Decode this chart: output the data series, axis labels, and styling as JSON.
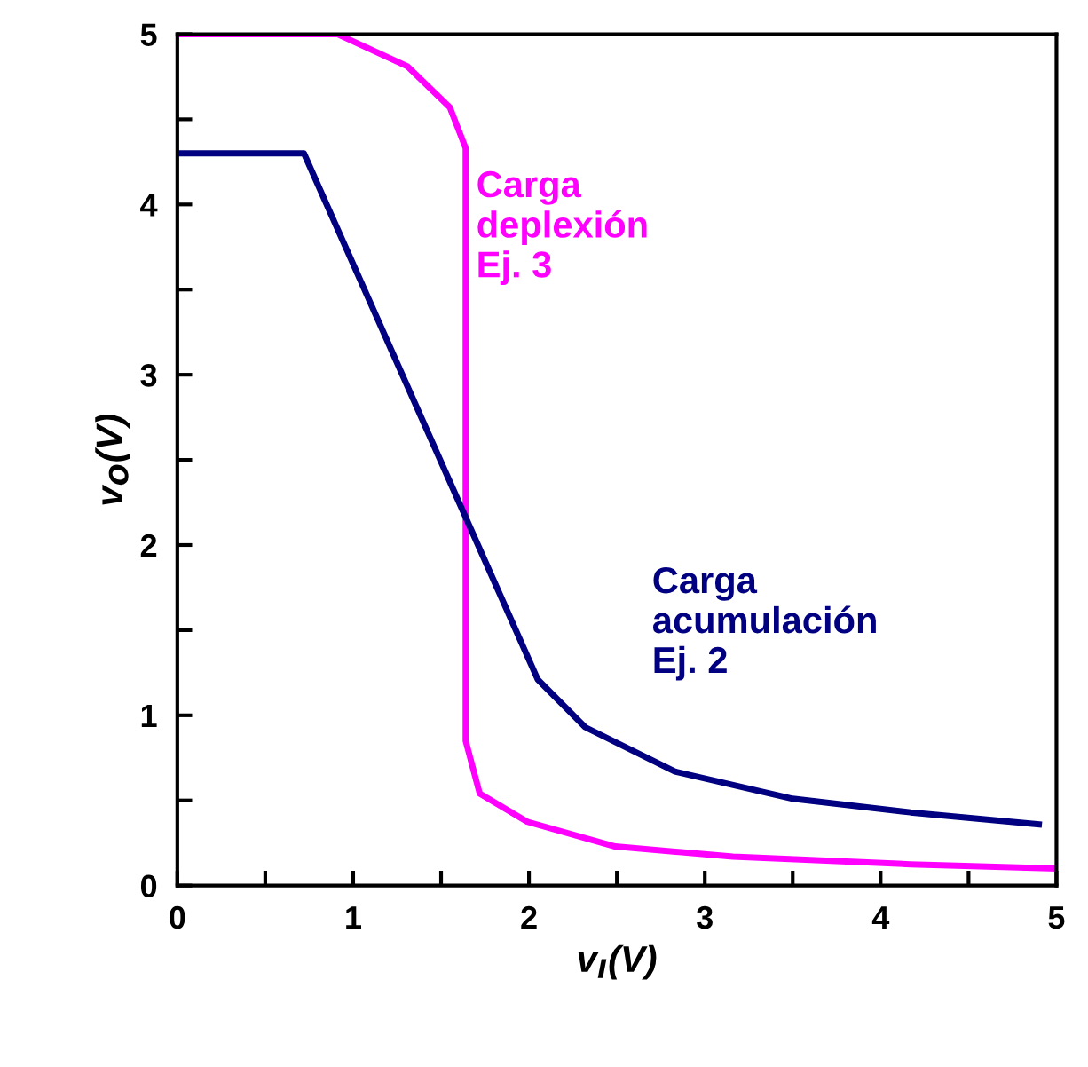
{
  "chart_data": {
    "type": "line",
    "xlabel": "v$_{I}$(V)",
    "ylabel": "v$_{O}$(V)",
    "xlim": [
      0,
      5
    ],
    "ylim": [
      0,
      5
    ],
    "xticks": [
      0,
      {
        "value": 0.5,
        "label": null
      },
      1,
      {
        "value": 1.5,
        "label": null
      },
      2,
      {
        "value": 2.5,
        "label": null
      },
      3,
      {
        "value": 3.5,
        "label": null
      },
      4,
      {
        "value": 4.5,
        "label": null
      },
      5
    ],
    "yticks": [
      0,
      {
        "value": 0.5,
        "label": null
      },
      1,
      {
        "value": 1.5,
        "label": null
      },
      2,
      {
        "value": 2.5,
        "label": null
      },
      3,
      {
        "value": 3.5,
        "label": null
      },
      4,
      {
        "value": 4.5,
        "label": null
      },
      5
    ],
    "grid": false,
    "legend": false,
    "marker": "none",
    "line_style": "solid",
    "series": [
      {
        "name": "Carga\ndeplexión\nEj. 3",
        "color": "#ff00ff",
        "x": [
          0,
          0.8,
          0.91,
          1.31,
          1.55,
          1.64,
          1.64,
          1.72,
          1.99,
          2.49,
          3.16,
          4.17,
          5.0
        ],
        "values": [
          5,
          5,
          5.0,
          4.81,
          4.57,
          4.33,
          0.85,
          0.54,
          0.375,
          0.23,
          0.17,
          0.125,
          0.1
        ]
      },
      {
        "name": "Carga\nacumulación\nEj. 2",
        "color": "#000080",
        "x": [
          0,
          0.72,
          2.05,
          2.32,
          2.83,
          3.5,
          4.17,
          4.9
        ],
        "values": [
          4.3,
          4.3,
          1.21,
          0.93,
          0.67,
          0.51,
          0.43,
          0.36
        ]
      }
    ]
  }
}
